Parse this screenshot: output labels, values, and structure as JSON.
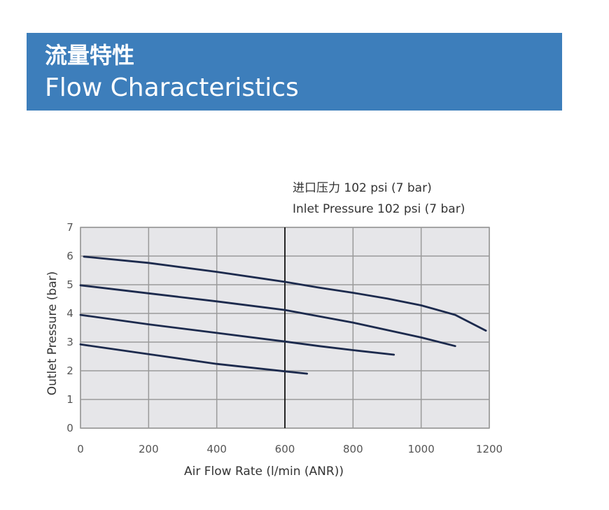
{
  "header": {
    "title_zh": "流量特性",
    "title_en": "Flow Characteristics"
  },
  "colors": {
    "banner": "#3d7ebb",
    "line": "#1c2a4d",
    "plot_background": "#e6e6e9",
    "grid": "#9a9a9a",
    "marker": "#000000"
  },
  "chart_data": {
    "type": "line",
    "annotation_zh": "进口压力 102 psi (7 bar)",
    "annotation_en": "Inlet Pressure  102 psi (7 bar)",
    "xlabel": "Air Flow Rate (l/min (ANR))",
    "ylabel": "Outlet Pressure (bar)",
    "xlim": [
      0,
      1200
    ],
    "ylim": [
      0,
      7
    ],
    "xticks": [
      0,
      200,
      400,
      600,
      800,
      1000,
      1200
    ],
    "yticks": [
      0,
      1,
      2,
      3,
      4,
      5,
      6,
      7
    ],
    "grid": true,
    "reference_line_x": 600,
    "series": [
      {
        "x": [
          10,
          200,
          400,
          600,
          700,
          800,
          900,
          1000,
          1100,
          1190
        ],
        "y": [
          5.98,
          5.76,
          5.45,
          5.1,
          4.9,
          4.72,
          4.52,
          4.28,
          3.95,
          3.4
        ]
      },
      {
        "x": [
          0,
          200,
          400,
          600,
          700,
          800,
          900,
          1000,
          1100
        ],
        "y": [
          4.98,
          4.7,
          4.42,
          4.12,
          3.9,
          3.68,
          3.42,
          3.16,
          2.86
        ]
      },
      {
        "x": [
          0,
          200,
          400,
          600,
          700,
          800,
          920
        ],
        "y": [
          3.95,
          3.62,
          3.32,
          3.02,
          2.86,
          2.72,
          2.56
        ]
      },
      {
        "x": [
          0,
          200,
          400,
          600,
          665
        ],
        "y": [
          2.92,
          2.58,
          2.24,
          1.98,
          1.9
        ]
      }
    ]
  }
}
